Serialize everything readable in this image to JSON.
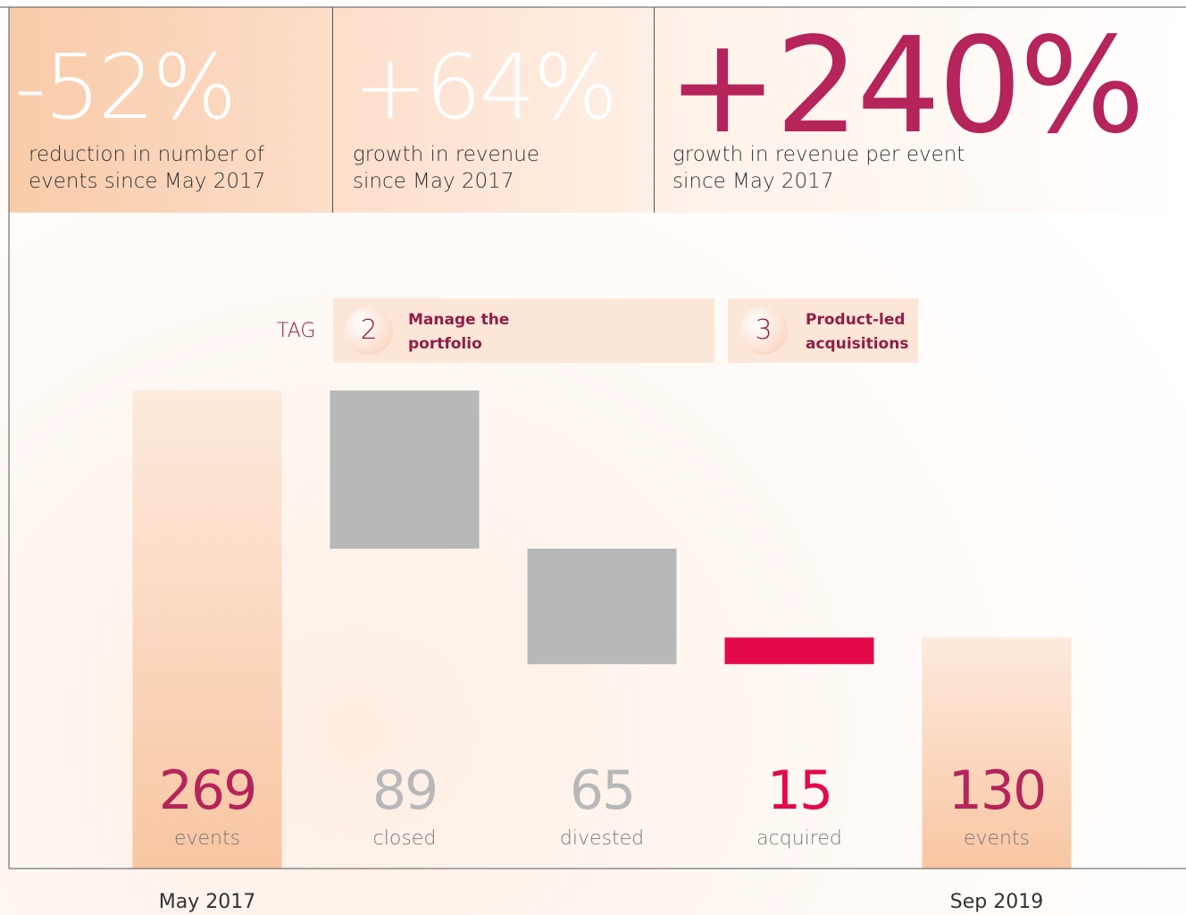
{
  "stats": [
    {
      "value": "-52%",
      "text": "reduction in number of events since May 2017"
    },
    {
      "value": "+64%",
      "text": "growth in revenue since May 2017"
    },
    {
      "value": "+240%",
      "text": "growth in revenue per event since May 2017"
    }
  ],
  "tag": {
    "label": "TAG",
    "steps": [
      {
        "number": "2",
        "text": "Manage the portfolio"
      },
      {
        "number": "3",
        "text": "Product-led acquisitions"
      }
    ]
  },
  "chart_data": {
    "type": "waterfall",
    "categories": [
      "events",
      "closed",
      "divested",
      "acquired",
      "events"
    ],
    "x_labels": [
      "May 2017",
      null,
      null,
      null,
      "Sep 2019"
    ],
    "values": [
      269,
      -89,
      -65,
      15,
      130
    ],
    "value_labels": [
      "269",
      "89",
      "65",
      "15",
      "130"
    ],
    "colors": {
      "total": "#f8c6a2",
      "decrease": "#b8b8b8",
      "increase": "#e30a4a",
      "total_label": "#b5245a"
    }
  }
}
